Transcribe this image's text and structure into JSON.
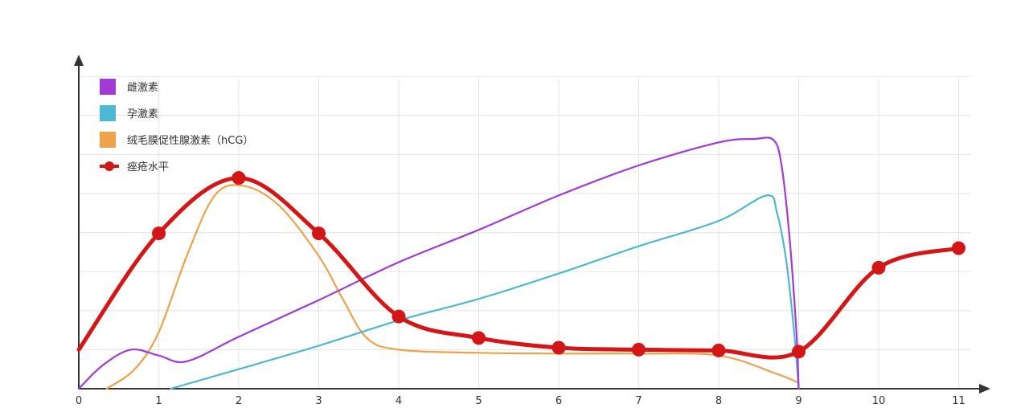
{
  "chart_data": {
    "type": "line",
    "title": "",
    "xlabel": "",
    "ylabel": "",
    "x_ticks": [
      "0",
      "1",
      "2",
      "3",
      "4",
      "5",
      "6",
      "7",
      "8",
      "9",
      "10",
      "11"
    ],
    "xlim": [
      0,
      11.2
    ],
    "ylim": [
      0,
      8
    ],
    "grid": true,
    "legend_placement": "top-left",
    "series": [
      {
        "name": "雌激素",
        "color": "#a23ad6",
        "style": "line",
        "points": [
          [
            0,
            0
          ],
          [
            0.3,
            0.6
          ],
          [
            0.65,
            1.0
          ],
          [
            1.0,
            0.85
          ],
          [
            1.35,
            0.7
          ],
          [
            2,
            1.33
          ],
          [
            3,
            2.27
          ],
          [
            4,
            3.24
          ],
          [
            5,
            4.07
          ],
          [
            6,
            4.95
          ],
          [
            7,
            5.72
          ],
          [
            8,
            6.31
          ],
          [
            8.45,
            6.4
          ],
          [
            8.68,
            6.38
          ],
          [
            8.78,
            5.8
          ],
          [
            8.88,
            4.0
          ],
          [
            8.97,
            1.5
          ],
          [
            9,
            0
          ]
        ]
      },
      {
        "name": "孕激素",
        "color": "#4cb8d4",
        "style": "line",
        "points": [
          [
            1.15,
            0
          ],
          [
            2,
            0.5
          ],
          [
            3,
            1.1
          ],
          [
            4,
            1.75
          ],
          [
            5,
            2.3
          ],
          [
            6,
            2.95
          ],
          [
            7,
            3.65
          ],
          [
            8,
            4.3
          ],
          [
            8.6,
            4.95
          ],
          [
            8.73,
            4.5
          ],
          [
            8.85,
            3.2
          ],
          [
            8.95,
            1.3
          ],
          [
            9,
            0
          ]
        ]
      },
      {
        "name": "绒毛膜促性腺激素（hCG）",
        "color": "#eea24a",
        "style": "line",
        "points": [
          [
            0.35,
            0
          ],
          [
            0.7,
            0.5
          ],
          [
            1.0,
            1.45
          ],
          [
            1.35,
            3.4
          ],
          [
            1.7,
            4.95
          ],
          [
            2.05,
            5.2
          ],
          [
            2.5,
            4.7
          ],
          [
            3.0,
            3.4
          ],
          [
            3.3,
            2.3
          ],
          [
            3.6,
            1.3
          ],
          [
            4.0,
            1.0
          ],
          [
            5.0,
            0.92
          ],
          [
            6.0,
            0.9
          ],
          [
            7.0,
            0.9
          ],
          [
            8.0,
            0.85
          ],
          [
            8.7,
            0.4
          ],
          [
            9.0,
            0.15
          ]
        ]
      },
      {
        "name": "痤疮水平",
        "color": "#d41616",
        "style": "line-markers",
        "points": [
          [
            0,
            1.0
          ],
          [
            1,
            3.98
          ],
          [
            2,
            5.4
          ],
          [
            3,
            3.98
          ],
          [
            4,
            1.85
          ],
          [
            5,
            1.3
          ],
          [
            6,
            1.05
          ],
          [
            7,
            1.0
          ],
          [
            8,
            0.98
          ],
          [
            9,
            0.95
          ],
          [
            10,
            3.1
          ],
          [
            11,
            3.6
          ]
        ],
        "marker_points": [
          [
            1,
            3.98
          ],
          [
            2,
            5.4
          ],
          [
            3,
            3.98
          ],
          [
            4,
            1.85
          ],
          [
            5,
            1.3
          ],
          [
            6,
            1.05
          ],
          [
            7,
            1.0
          ],
          [
            8,
            0.98
          ],
          [
            9,
            0.95
          ],
          [
            10,
            3.1
          ],
          [
            11,
            3.6
          ]
        ]
      }
    ]
  }
}
